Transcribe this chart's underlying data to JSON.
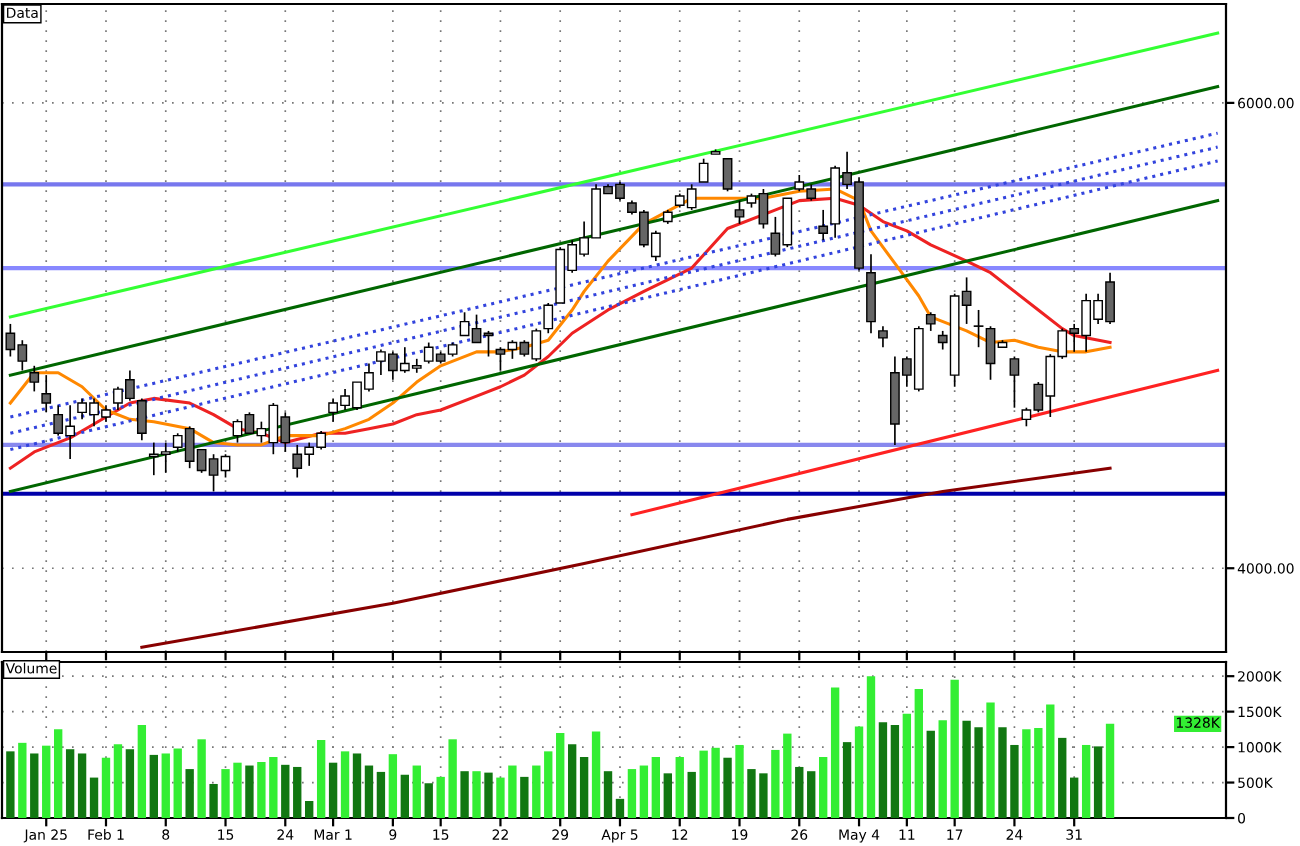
{
  "chart_data": [
    {
      "type": "candlestick",
      "title": "Data",
      "categories": [
        null,
        null,
        null,
        null,
        null,
        null,
        null,
        null,
        null,
        null,
        null,
        null,
        null,
        null,
        null,
        null,
        null,
        null,
        null,
        null,
        null,
        null,
        null,
        null,
        null,
        null,
        null,
        null,
        null,
        null,
        null,
        null,
        null,
        null,
        null,
        null,
        null,
        null,
        null,
        null,
        null,
        null,
        null,
        null,
        null,
        null,
        null,
        null,
        null,
        null,
        null,
        null,
        null,
        null,
        null,
        null,
        null,
        null,
        null,
        null,
        null,
        null,
        null,
        null,
        null,
        null,
        null,
        null,
        null,
        null,
        null,
        null,
        null,
        null,
        null,
        null,
        null,
        null,
        null,
        null,
        null,
        null,
        null,
        null,
        null,
        null,
        null,
        null,
        null,
        null,
        null,
        null,
        null,
        null,
        null,
        null,
        null,
        null,
        null,
        null,
        null,
        null
      ],
      "ohlc": [
        [
          5010,
          5050,
          4910,
          4940
        ],
        [
          4960,
          4980,
          4850,
          4890
        ],
        [
          4840,
          4870,
          4760,
          4800
        ],
        [
          4750,
          4830,
          4670,
          4710
        ],
        [
          4660,
          4700,
          4570,
          4580
        ],
        [
          4570,
          4700,
          4470,
          4610
        ],
        [
          4670,
          4730,
          4640,
          4710
        ],
        [
          4660,
          4730,
          4610,
          4710
        ],
        [
          4650,
          4700,
          4630,
          4680
        ],
        [
          4710,
          4780,
          4680,
          4770
        ],
        [
          4810,
          4850,
          4720,
          4730
        ],
        [
          4720,
          4730,
          4550,
          4580
        ],
        [
          4480,
          4540,
          4400,
          4490
        ],
        [
          4490,
          4540,
          4410,
          4500
        ],
        [
          4520,
          4580,
          4500,
          4570
        ],
        [
          4600,
          4610,
          4430,
          4460
        ],
        [
          4510,
          4510,
          4410,
          4420
        ],
        [
          4470,
          4490,
          4330,
          4400
        ],
        [
          4420,
          4490,
          4390,
          4480
        ],
        [
          4570,
          4640,
          4540,
          4630
        ],
        [
          4660,
          4670,
          4580,
          4580
        ],
        [
          4570,
          4630,
          4540,
          4600
        ],
        [
          4540,
          4710,
          4490,
          4700
        ],
        [
          4650,
          4670,
          4500,
          4540
        ],
        [
          4490,
          4530,
          4390,
          4430
        ],
        [
          4490,
          4540,
          4440,
          4520
        ],
        [
          4520,
          4590,
          4510,
          4580
        ],
        [
          4670,
          4730,
          4630,
          4710
        ],
        [
          4700,
          4770,
          4680,
          4740
        ],
        [
          4690,
          4800,
          4680,
          4800
        ],
        [
          4770,
          4880,
          4760,
          4840
        ],
        [
          4890,
          4940,
          4830,
          4930
        ],
        [
          4920,
          4930,
          4810,
          4850
        ],
        [
          4850,
          4950,
          4840,
          4880
        ],
        [
          4860,
          4900,
          4840,
          4870
        ],
        [
          4890,
          4970,
          4880,
          4950
        ],
        [
          4920,
          4930,
          4880,
          4890
        ],
        [
          4920,
          4970,
          4910,
          4960
        ],
        [
          5000,
          5100,
          5000,
          5060
        ],
        [
          5030,
          5090,
          4970,
          4970
        ],
        [
          5010,
          5020,
          4910,
          5000
        ],
        [
          4940,
          4950,
          4850,
          4920
        ],
        [
          4940,
          4980,
          4900,
          4970
        ],
        [
          4970,
          4980,
          4910,
          4920
        ],
        [
          4900,
          5030,
          4890,
          5020
        ],
        [
          5030,
          5140,
          5010,
          5130
        ],
        [
          5140,
          5380,
          5140,
          5370
        ],
        [
          5280,
          5410,
          5270,
          5390
        ],
        [
          5350,
          5490,
          5340,
          5420
        ],
        [
          5420,
          5650,
          5420,
          5630
        ],
        [
          5640,
          5650,
          5610,
          5610
        ],
        [
          5650,
          5660,
          5580,
          5590
        ],
        [
          5570,
          5580,
          5520,
          5530
        ],
        [
          5530,
          5540,
          5380,
          5390
        ],
        [
          5340,
          5450,
          5320,
          5440
        ],
        [
          5490,
          5540,
          5480,
          5530
        ],
        [
          5560,
          5610,
          5550,
          5600
        ],
        [
          5550,
          5650,
          5540,
          5630
        ],
        [
          5660,
          5760,
          5660,
          5740
        ],
        [
          5780,
          5800,
          5780,
          5790
        ],
        [
          5760,
          5760,
          5620,
          5630
        ],
        [
          5540,
          5580,
          5480,
          5510
        ],
        [
          5570,
          5610,
          5550,
          5600
        ],
        [
          5610,
          5630,
          5460,
          5480
        ],
        [
          5440,
          5510,
          5340,
          5350
        ],
        [
          5390,
          5590,
          5380,
          5590
        ],
        [
          5630,
          5690,
          5620,
          5660
        ],
        [
          5630,
          5650,
          5580,
          5590
        ],
        [
          5470,
          5540,
          5410,
          5440
        ],
        [
          5480,
          5730,
          5420,
          5720
        ],
        [
          5700,
          5790,
          5630,
          5650
        ],
        [
          5660,
          5680,
          5280,
          5290
        ],
        [
          5270,
          5350,
          5010,
          5060
        ],
        [
          5020,
          5040,
          4950,
          4990
        ],
        [
          4840,
          4910,
          4530,
          4620
        ],
        [
          4900,
          4910,
          4780,
          4830
        ],
        [
          4770,
          5040,
          4760,
          5030
        ],
        [
          5090,
          5100,
          5020,
          5050
        ],
        [
          5000,
          5020,
          4940,
          4970
        ],
        [
          4830,
          5180,
          4780,
          5170
        ],
        [
          5190,
          5250,
          5050,
          5130
        ],
        [
          5040,
          5110,
          4950,
          5040
        ],
        [
          5030,
          5040,
          4810,
          4880
        ],
        [
          4950,
          4980,
          4950,
          4970
        ],
        [
          4900,
          4910,
          4690,
          4830
        ],
        [
          4640,
          4690,
          4610,
          4680
        ],
        [
          4790,
          4800,
          4670,
          4680
        ],
        [
          4740,
          4920,
          4650,
          4910
        ],
        [
          4910,
          5030,
          4900,
          5020
        ],
        [
          5030,
          5050,
          4930,
          5010
        ],
        [
          5000,
          5180,
          4930,
          5150
        ],
        [
          5070,
          5180,
          5050,
          5150
        ],
        [
          5230,
          5270,
          5050,
          5060
        ],
        null,
        null,
        null,
        null,
        null,
        null,
        null,
        null,
        null
      ],
      "colors": [
        "#666666",
        "#666666",
        "#666666",
        "#666666",
        "#666666",
        "#ffffff",
        "#ffffff",
        "#ffffff",
        "#ffffff",
        "#ffffff",
        "#666666",
        "#666666",
        "#ffffff",
        "#ffffff",
        "#ffffff",
        "#666666",
        "#666666",
        "#666666",
        "#ffffff",
        "#ffffff",
        "#666666",
        "#ffffff",
        "#ffffff",
        "#666666",
        "#666666",
        "#ffffff",
        "#ffffff",
        "#ffffff",
        "#ffffff",
        "#ffffff",
        "#ffffff",
        "#ffffff",
        "#666666",
        "#ffffff",
        "#ffffff",
        "#ffffff",
        "#666666",
        "#ffffff",
        "#ffffff",
        "#666666",
        "#666666",
        "#666666",
        "#ffffff",
        "#666666",
        "#ffffff",
        "#ffffff",
        "#ffffff",
        "#ffffff",
        "#ffffff",
        "#ffffff",
        "#666666",
        "#666666",
        "#666666",
        "#666666",
        "#ffffff",
        "#ffffff",
        "#ffffff",
        "#ffffff",
        "#ffffff",
        "#ffffff",
        "#666666",
        "#666666",
        "#ffffff",
        "#666666",
        "#666666",
        "#ffffff",
        "#ffffff",
        "#666666",
        "#666666",
        "#ffffff",
        "#666666",
        "#666666",
        "#666666",
        "#666666",
        "#666666",
        "#666666",
        "#ffffff",
        "#666666",
        "#666666",
        "#ffffff",
        "#666666",
        "#ffffff",
        "#666666",
        "#ffffff",
        "#666666",
        "#ffffff",
        "#666666",
        "#ffffff",
        "#ffffff",
        "#666666",
        "#ffffff",
        "#ffffff",
        "#666666",
        null,
        null,
        null,
        null,
        null,
        null,
        null,
        null,
        null
      ],
      "series": [
        {
          "type": "line",
          "color": "#ee2222",
          "line_style": "solid",
          "values": [
            4430,
            null,
            4500,
            null,
            null,
            4560,
            null,
            4620,
            null,
            null,
            4710,
            null,
            4730,
            null,
            null,
            4710,
            null,
            4660,
            null,
            4600,
            null,
            4580,
            null,
            4540,
            null,
            null,
            4580,
            null,
            4580,
            null,
            4600,
            null,
            4620,
            null,
            4660,
            null,
            4680,
            null,
            null,
            4740,
            null,
            4780,
            null,
            4830,
            null,
            4910,
            null,
            5010,
            null,
            null,
            5110,
            null,
            null,
            5190,
            null,
            null,
            null,
            5290,
            null,
            null,
            5460,
            null,
            null,
            5520,
            null,
            null,
            5580,
            null,
            null,
            5590,
            null,
            5560,
            null,
            5490,
            null,
            5450,
            null,
            5390,
            null,
            null,
            5320,
            null,
            5270,
            null,
            5190,
            null,
            5110,
            null,
            5030,
            5000,
            null,
            null,
            4970,
            null,
            null,
            null,
            null,
            null,
            null,
            null,
            null,
            null
          ]
        },
        {
          "type": "line",
          "color": "#ff8800",
          "line_style": "solid",
          "values": [
            4710,
            null,
            4840,
            null,
            4840,
            null,
            4780,
            null,
            4680,
            null,
            4640,
            null,
            4630,
            null,
            null,
            4600,
            null,
            4540,
            null,
            4530,
            null,
            4530,
            null,
            4570,
            null,
            null,
            4570,
            null,
            4600,
            null,
            4640,
            null,
            4710,
            null,
            4800,
            null,
            4870,
            null,
            null,
            4930,
            null,
            4930,
            null,
            4950,
            null,
            4980,
            null,
            5110,
            5190,
            null,
            5320,
            null,
            null,
            5480,
            null,
            null,
            null,
            5590,
            null,
            null,
            5590,
            null,
            null,
            5590,
            null,
            null,
            5620,
            null,
            null,
            5630,
            null,
            5580,
            5450,
            null,
            5310,
            null,
            5170,
            5080,
            null,
            null,
            5020,
            null,
            4970,
            null,
            4980,
            null,
            4950,
            null,
            4930,
            null,
            4930,
            null,
            4950,
            null,
            null,
            null,
            null,
            null,
            null,
            null,
            null,
            null
          ]
        },
        {
          "type": "line",
          "color": "#880000",
          "line_style": "solid",
          "values": [
            null,
            null,
            null,
            null,
            null,
            null,
            null,
            null,
            null,
            null,
            null,
            3660,
            null,
            null,
            null,
            null,
            null,
            null,
            null,
            null,
            null,
            null,
            null,
            null,
            null,
            null,
            null,
            null,
            null,
            null,
            null,
            null,
            3850,
            null,
            null,
            null,
            null,
            null,
            null,
            null,
            null,
            null,
            null,
            null,
            null,
            null,
            null,
            null,
            4020,
            null,
            null,
            null,
            null,
            null,
            null,
            null,
            null,
            null,
            null,
            null,
            null,
            null,
            null,
            null,
            null,
            4210,
            null,
            null,
            null,
            null,
            null,
            null,
            null,
            null,
            null,
            null,
            null,
            null,
            4330,
            null,
            null,
            null,
            null,
            null,
            null,
            null,
            null,
            null,
            null,
            null,
            null,
            null,
            4430,
            null,
            null,
            null,
            null,
            null,
            null,
            null,
            null,
            null
          ]
        },
        {
          "type": "line",
          "color": "#33ff33",
          "line_style": "solid",
          "values": [
            5080,
            null,
            null,
            null,
            null,
            null,
            null,
            null,
            null,
            null,
            null,
            null,
            null,
            null,
            null,
            null,
            null,
            null,
            null,
            null,
            null,
            null,
            null,
            null,
            null,
            null,
            null,
            null,
            null,
            null,
            null,
            null,
            null,
            null,
            null,
            null,
            null,
            null,
            null,
            null,
            null,
            null,
            null,
            null,
            null,
            null,
            null,
            null,
            null,
            null,
            null,
            null,
            null,
            null,
            null,
            null,
            null,
            null,
            null,
            null,
            null,
            null,
            null,
            null,
            null,
            null,
            null,
            null,
            null,
            null,
            null,
            null,
            null,
            null,
            null,
            null,
            null,
            null,
            null,
            null,
            null,
            null,
            null,
            null,
            null,
            null,
            null,
            null,
            null,
            null,
            null,
            null,
            null,
            null,
            null,
            null,
            null,
            null,
            null,
            null,
            null,
            6300
          ]
        },
        {
          "type": "line",
          "color": "#006600",
          "line_style": "solid",
          "values": [
            4830,
            null,
            null,
            null,
            null,
            null,
            null,
            null,
            null,
            null,
            null,
            null,
            null,
            null,
            null,
            null,
            null,
            null,
            null,
            null,
            null,
            null,
            null,
            null,
            null,
            null,
            null,
            null,
            null,
            null,
            null,
            null,
            null,
            null,
            null,
            null,
            null,
            null,
            null,
            null,
            null,
            null,
            null,
            null,
            null,
            null,
            null,
            null,
            null,
            null,
            null,
            null,
            null,
            null,
            null,
            null,
            null,
            null,
            null,
            null,
            null,
            null,
            null,
            null,
            null,
            null,
            null,
            null,
            null,
            null,
            null,
            null,
            null,
            null,
            null,
            null,
            null,
            null,
            null,
            null,
            null,
            null,
            null,
            null,
            null,
            null,
            null,
            null,
            null,
            null,
            null,
            null,
            null,
            null,
            null,
            null,
            null,
            null,
            null,
            null,
            null,
            6070
          ]
        },
        {
          "type": "line",
          "color": "#006600",
          "line_style": "solid",
          "values": [
            4330,
            null,
            null,
            null,
            null,
            null,
            null,
            null,
            null,
            null,
            null,
            null,
            null,
            null,
            null,
            null,
            null,
            null,
            null,
            null,
            null,
            null,
            null,
            null,
            null,
            null,
            null,
            null,
            null,
            null,
            null,
            null,
            null,
            null,
            null,
            null,
            null,
            null,
            null,
            null,
            null,
            null,
            null,
            null,
            null,
            null,
            null,
            null,
            null,
            null,
            null,
            null,
            null,
            null,
            null,
            null,
            null,
            null,
            null,
            null,
            null,
            null,
            null,
            null,
            null,
            null,
            null,
            null,
            null,
            null,
            null,
            null,
            null,
            null,
            null,
            null,
            null,
            null,
            null,
            null,
            null,
            null,
            null,
            null,
            null,
            null,
            null,
            null,
            null,
            null,
            null,
            null,
            null,
            null,
            null,
            null,
            null,
            null,
            null,
            null,
            null,
            5580
          ]
        },
        {
          "type": "line",
          "color": "#3344dd",
          "line_style": "dotted",
          "values": [
            4650,
            null,
            null,
            null,
            null,
            null,
            null,
            null,
            null,
            null,
            null,
            null,
            null,
            null,
            null,
            null,
            null,
            null,
            null,
            null,
            null,
            null,
            null,
            null,
            null,
            null,
            null,
            null,
            null,
            null,
            null,
            null,
            null,
            null,
            null,
            null,
            null,
            null,
            null,
            null,
            null,
            null,
            null,
            null,
            null,
            null,
            null,
            null,
            null,
            null,
            null,
            null,
            null,
            null,
            null,
            null,
            null,
            null,
            null,
            null,
            null,
            null,
            null,
            null,
            null,
            null,
            null,
            null,
            null,
            null,
            null,
            null,
            null,
            null,
            null,
            null,
            null,
            null,
            null,
            null,
            null,
            null,
            null,
            null,
            null,
            null,
            null,
            null,
            null,
            null,
            null,
            null,
            null,
            null,
            null,
            null,
            null,
            null,
            null,
            null,
            null,
            5870
          ]
        },
        {
          "type": "line",
          "color": "#3344dd",
          "line_style": "dotted",
          "values": [
            4580,
            null,
            null,
            null,
            null,
            null,
            null,
            null,
            null,
            null,
            null,
            null,
            null,
            null,
            null,
            null,
            null,
            null,
            null,
            null,
            null,
            null,
            null,
            null,
            null,
            null,
            null,
            null,
            null,
            null,
            null,
            null,
            null,
            null,
            null,
            null,
            null,
            null,
            null,
            null,
            null,
            null,
            null,
            null,
            null,
            null,
            null,
            null,
            null,
            null,
            null,
            null,
            null,
            null,
            null,
            null,
            null,
            null,
            null,
            null,
            null,
            null,
            null,
            null,
            null,
            null,
            null,
            null,
            null,
            null,
            null,
            null,
            null,
            null,
            null,
            null,
            null,
            null,
            null,
            null,
            null,
            null,
            null,
            null,
            null,
            null,
            null,
            null,
            null,
            null,
            null,
            null,
            null,
            null,
            null,
            null,
            null,
            null,
            null,
            null,
            null,
            5810
          ]
        },
        {
          "type": "line",
          "color": "#3344dd",
          "line_style": "dotted",
          "values": [
            4510,
            null,
            null,
            null,
            null,
            null,
            null,
            null,
            null,
            null,
            null,
            null,
            null,
            null,
            null,
            null,
            null,
            null,
            null,
            null,
            null,
            null,
            null,
            null,
            null,
            null,
            null,
            null,
            null,
            null,
            null,
            null,
            null,
            null,
            null,
            null,
            null,
            null,
            null,
            null,
            null,
            null,
            null,
            null,
            null,
            null,
            null,
            null,
            null,
            null,
            null,
            null,
            null,
            null,
            null,
            null,
            null,
            null,
            null,
            null,
            null,
            null,
            null,
            null,
            null,
            null,
            null,
            null,
            null,
            null,
            null,
            null,
            null,
            null,
            null,
            null,
            null,
            null,
            null,
            null,
            null,
            null,
            null,
            null,
            null,
            null,
            null,
            null,
            null,
            null,
            null,
            null,
            null,
            null,
            null,
            null,
            null,
            null,
            null,
            null,
            null,
            5750
          ]
        },
        {
          "type": "line",
          "color": "#ff2222",
          "line_style": "solid",
          "values": [
            null,
            null,
            null,
            null,
            null,
            null,
            null,
            null,
            null,
            null,
            null,
            null,
            null,
            null,
            null,
            null,
            null,
            null,
            null,
            null,
            null,
            null,
            null,
            null,
            null,
            null,
            null,
            null,
            null,
            null,
            null,
            null,
            null,
            null,
            null,
            null,
            null,
            null,
            null,
            null,
            null,
            null,
            null,
            null,
            null,
            null,
            null,
            null,
            null,
            null,
            null,
            null,
            4230,
            null,
            null,
            null,
            null,
            null,
            null,
            null,
            null,
            null,
            null,
            null,
            null,
            null,
            null,
            null,
            null,
            null,
            null,
            null,
            null,
            null,
            null,
            null,
            null,
            null,
            null,
            null,
            null,
            null,
            null,
            null,
            null,
            null,
            null,
            null,
            null,
            null,
            null,
            null,
            null,
            null,
            null,
            null,
            null,
            null,
            null,
            null,
            null,
            4850
          ]
        }
      ],
      "ref_lines": [
        {
          "axis": "y",
          "value": 5650,
          "color": "#7777ee"
        },
        {
          "axis": "y",
          "value": 5290,
          "color": "#8888ff"
        },
        {
          "axis": "y",
          "value": 4530,
          "color": "#8888ee"
        },
        {
          "axis": "y",
          "value": 4320,
          "color": "#0000aa"
        }
      ],
      "ylim": [
        3640,
        6425
      ],
      "yticks": [
        {
          "value": 6000,
          "label": "6000.00"
        },
        {
          "value": 4000,
          "label": "4000.00"
        }
      ],
      "grid": true
    },
    {
      "type": "bar",
      "title": "Volume",
      "categories": [
        null,
        null,
        null,
        "Jan 25",
        null,
        null,
        null,
        null,
        "Feb 1",
        null,
        null,
        null,
        null,
        "8",
        null,
        null,
        null,
        null,
        "15",
        null,
        null,
        null,
        null,
        "24",
        null,
        null,
        null,
        "Mar 1",
        null,
        null,
        null,
        null,
        "9",
        null,
        null,
        null,
        "15",
        null,
        null,
        null,
        null,
        "22",
        null,
        null,
        null,
        null,
        "29",
        null,
        null,
        null,
        null,
        "Apr 5",
        null,
        null,
        null,
        null,
        "12",
        null,
        null,
        null,
        null,
        "19",
        null,
        null,
        null,
        null,
        "26",
        null,
        null,
        null,
        null,
        "May 4",
        null,
        null,
        null,
        "11",
        null,
        null,
        null,
        "17",
        null,
        null,
        null,
        null,
        "24",
        null,
        null,
        null,
        null,
        "31",
        null,
        null,
        null,
        null,
        null,
        null,
        null,
        null,
        null,
        null,
        null,
        null
      ],
      "values": [
        940,
        1060,
        910,
        1020,
        1250,
        970,
        910,
        570,
        850,
        1040,
        970,
        1310,
        890,
        910,
        980,
        690,
        1110,
        480,
        690,
        780,
        740,
        790,
        860,
        750,
        720,
        240,
        1100,
        780,
        940,
        910,
        740,
        650,
        900,
        610,
        740,
        490,
        580,
        1110,
        660,
        660,
        640,
        570,
        740,
        580,
        740,
        940,
        1200,
        1040,
        860,
        1220,
        660,
        270,
        690,
        740,
        860,
        630,
        860,
        650,
        950,
        990,
        850,
        1030,
        690,
        630,
        960,
        1190,
        720,
        660,
        860,
        1840,
        1070,
        1290,
        2000,
        1350,
        1310,
        1470,
        1820,
        1230,
        1380,
        1950,
        1370,
        1280,
        1630,
        1280,
        1030,
        1250,
        1270,
        1600,
        1130,
        570,
        1030,
        1010,
        1328,
        null,
        null,
        null,
        null,
        null,
        null,
        null,
        null,
        null
      ],
      "colors": [
        "#117711",
        "#33ee33",
        "#117711",
        "#33ee33",
        "#33ee33",
        "#117711",
        "#117711",
        "#117711",
        "#33ee33",
        "#33ee33",
        "#117711",
        "#33ee33",
        "#117711",
        "#33ee33",
        "#33ee33",
        "#117711",
        "#33ee33",
        "#117711",
        "#33ee33",
        "#33ee33",
        "#117711",
        "#33ee33",
        "#33ee33",
        "#117711",
        "#117711",
        "#117711",
        "#33ee33",
        "#117711",
        "#33ee33",
        "#117711",
        "#117711",
        "#117711",
        "#33ee33",
        "#117711",
        "#33ee33",
        "#117711",
        "#33ee33",
        "#33ee33",
        "#117711",
        "#33ee33",
        "#117711",
        "#33ee33",
        "#33ee33",
        "#117711",
        "#33ee33",
        "#33ee33",
        "#33ee33",
        "#117711",
        "#117711",
        "#33ee33",
        "#117711",
        "#117711",
        "#33ee33",
        "#33ee33",
        "#33ee33",
        "#117711",
        "#33ee33",
        "#117711",
        "#33ee33",
        "#33ee33",
        "#117711",
        "#33ee33",
        "#117711",
        "#117711",
        "#33ee33",
        "#33ee33",
        "#117711",
        "#117711",
        "#33ee33",
        "#33ee33",
        "#117711",
        "#33ee33",
        "#33ee33",
        "#117711",
        "#117711",
        "#33ee33",
        "#33ee33",
        "#117711",
        "#33ee33",
        "#33ee33",
        "#117711",
        "#117711",
        "#33ee33",
        "#117711",
        "#117711",
        "#33ee33",
        "#33ee33",
        "#33ee33",
        "#117711",
        "#117711",
        "#33ee33",
        "#117711",
        "#33ee33",
        null,
        null,
        null,
        null,
        null,
        null,
        null,
        null,
        null
      ],
      "ylim": [
        0,
        2200
      ],
      "yticks": [
        0,
        {
          "value": 500,
          "label": "500K"
        },
        {
          "value": 1000,
          "label": "1000K"
        },
        {
          "value": 1500,
          "label": "1500K"
        },
        {
          "value": 2000,
          "label": "2000K"
        }
      ],
      "annotations": [
        {
          "text": "1328K",
          "y": 1328
        }
      ],
      "grid": true
    }
  ]
}
